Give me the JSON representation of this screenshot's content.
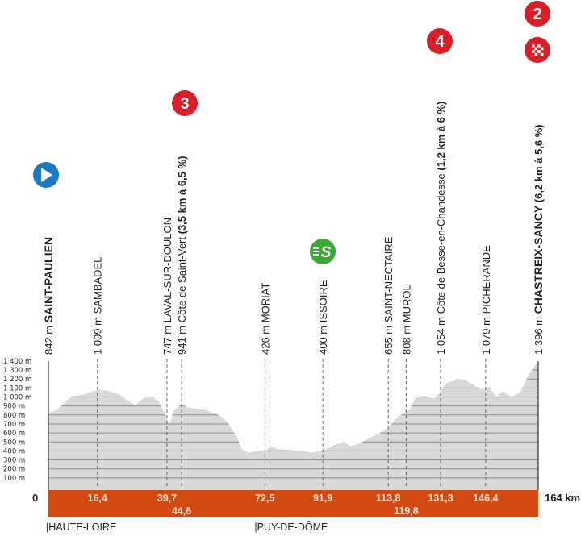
{
  "chart_data": {
    "type": "area",
    "title": "",
    "xlabel": "",
    "ylabel": "",
    "xlim": [
      0,
      164
    ],
    "ylim": [
      0,
      1400
    ],
    "grid": true,
    "x_end_label": "164 km",
    "zero_label": "0",
    "y_ticks": [
      "100 m",
      "200 m",
      "300 m",
      "400 m",
      "500 m",
      "600 m",
      "700 m",
      "800 m",
      "900 m",
      "1 000 m",
      "1 100 m",
      "1 200 m",
      "1 300 m",
      "1 400 m"
    ],
    "y_tick_values": [
      100,
      200,
      300,
      400,
      500,
      600,
      700,
      800,
      900,
      1000,
      1100,
      1200,
      1300,
      1400
    ],
    "profile": [
      [
        0,
        820
      ],
      [
        3,
        860
      ],
      [
        6,
        960
      ],
      [
        8,
        1010
      ],
      [
        12,
        1030
      ],
      [
        16.4,
        1080
      ],
      [
        20,
        1070
      ],
      [
        24,
        1020
      ],
      [
        27,
        950
      ],
      [
        29,
        910
      ],
      [
        32,
        990
      ],
      [
        35,
        1000
      ],
      [
        37,
        950
      ],
      [
        39.7,
        760
      ],
      [
        40.5,
        700
      ],
      [
        42,
        850
      ],
      [
        44.6,
        920
      ],
      [
        47,
        880
      ],
      [
        52,
        860
      ],
      [
        57,
        800
      ],
      [
        60,
        720
      ],
      [
        63,
        560
      ],
      [
        65,
        410
      ],
      [
        67,
        380
      ],
      [
        70,
        400
      ],
      [
        72.5,
        400
      ],
      [
        75,
        450
      ],
      [
        77,
        420
      ],
      [
        80,
        410
      ],
      [
        85,
        400
      ],
      [
        88,
        380
      ],
      [
        91.9,
        400
      ],
      [
        96,
        470
      ],
      [
        99,
        500
      ],
      [
        101,
        450
      ],
      [
        104,
        480
      ],
      [
        108,
        550
      ],
      [
        111,
        600
      ],
      [
        113.8,
        655
      ],
      [
        117,
        780
      ],
      [
        119.8,
        830
      ],
      [
        121,
        860
      ],
      [
        123,
        1000
      ],
      [
        126,
        1010
      ],
      [
        129,
        980
      ],
      [
        131.3,
        1060
      ],
      [
        133,
        1150
      ],
      [
        137,
        1200
      ],
      [
        140,
        1180
      ],
      [
        144,
        1100
      ],
      [
        146.4,
        1080
      ],
      [
        147.5,
        1110
      ],
      [
        150,
        1000
      ],
      [
        152,
        1060
      ],
      [
        155,
        1000
      ],
      [
        158,
        1050
      ],
      [
        161,
        1260
      ],
      [
        164,
        1396
      ]
    ],
    "points": [
      {
        "km": 0,
        "km_label": "",
        "elev": "842 m",
        "name": "SAINT-PAULIEN",
        "extra": "",
        "bold": true,
        "icon": "start"
      },
      {
        "km": 16.4,
        "km_label": "16,4",
        "elev": "1 099 m",
        "name": "SAMBADEL",
        "extra": "",
        "bold": false,
        "icon": ""
      },
      {
        "km": 39.7,
        "km_label": "39,7",
        "elev": "747 m",
        "name": "LAVAL-SUR-DOULON",
        "extra": "",
        "bold": false,
        "icon": ""
      },
      {
        "km": 44.6,
        "km_label": "44,6",
        "elev": "941 m",
        "name": "Côte de Saint-Vert",
        "extra": "(3,5 km à 6,5 %)",
        "bold": false,
        "icon": "climb-3"
      },
      {
        "km": 72.5,
        "km_label": "72,5",
        "elev": "426 m",
        "name": "MORIAT",
        "extra": "",
        "bold": false,
        "icon": ""
      },
      {
        "km": 91.9,
        "km_label": "91,9",
        "elev": "400 m",
        "name": "ISSOIRE",
        "extra": "",
        "bold": false,
        "icon": "sprint"
      },
      {
        "km": 113.8,
        "km_label": "113,8",
        "elev": "655 m",
        "name": "SAINT-NECTAIRE",
        "extra": "",
        "bold": false,
        "icon": ""
      },
      {
        "km": 119.8,
        "km_label": "119,8",
        "elev": "808 m",
        "name": "MUROL",
        "extra": "",
        "bold": false,
        "icon": ""
      },
      {
        "km": 131.3,
        "km_label": "131,3",
        "elev": "1 054 m",
        "name": "Côte de Besse-en-Chandesse",
        "extra": "(1,2 km à 6 %)",
        "bold": false,
        "icon": "climb-4"
      },
      {
        "km": 146.4,
        "km_label": "146,4",
        "elev": "1 079 m",
        "name": "PICHERANDE",
        "extra": "",
        "bold": false,
        "icon": ""
      },
      {
        "km": 164,
        "km_label": "",
        "elev": "1 396 m",
        "name": "CHASTREIX-SANCY",
        "extra": "(6,2 km à 5,6 %)",
        "bold": true,
        "icon": "finish-climb-2"
      }
    ],
    "badges": {
      "climb-3": "3",
      "climb-4": "4",
      "finish-climb-2": "2"
    },
    "regions": [
      {
        "km": 0,
        "label": "|HAUTE-LOIRE"
      },
      {
        "km": 69.8,
        "label": "|PUY-DE-DÔME"
      }
    ],
    "colors": {
      "profile": "#d9d9d9",
      "band": "#d24a12",
      "climb": "#d81e27",
      "start": "#1b78c2",
      "sprint": "#3aaa35",
      "grid": "#8c8c8c"
    }
  }
}
